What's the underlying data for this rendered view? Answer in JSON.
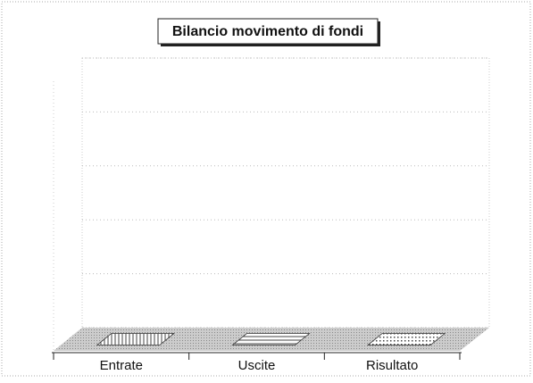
{
  "chart_data": {
    "type": "bar3d",
    "title": "Bilancio movimento di fondi",
    "categories": [
      "Entrate",
      "Uscite",
      "Risultato"
    ],
    "values": [
      0,
      0,
      0
    ],
    "ylim": [
      0,
      5
    ],
    "yticks": [
      0,
      1,
      2,
      3,
      4,
      5
    ],
    "grid": true
  }
}
